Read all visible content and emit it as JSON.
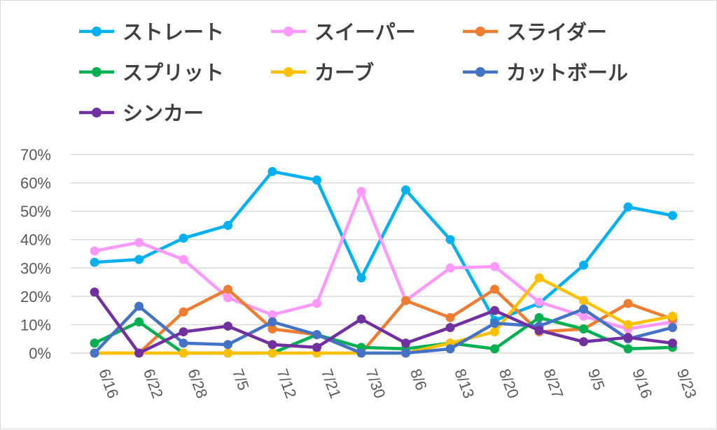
{
  "chart_data": {
    "type": "line",
    "title": "",
    "xlabel": "",
    "ylabel": "",
    "categories": [
      "6/16",
      "6/22",
      "6/28",
      "7/5",
      "7/12",
      "7/21",
      "7/30",
      "8/6",
      "8/13",
      "8/20",
      "8/27",
      "9/5",
      "9/16",
      "9/23"
    ],
    "y_tick_labels": [
      "0%",
      "10%",
      "20%",
      "30%",
      "40%",
      "50%",
      "60%",
      "70%"
    ],
    "ylim": [
      0,
      70
    ],
    "grid": true,
    "legend_position": "top",
    "series": [
      {
        "name": "ストレート",
        "color": "#00b0f0",
        "values": [
          32,
          33,
          40.5,
          45,
          64,
          61,
          26.5,
          57.5,
          40,
          11.5,
          17.5,
          31,
          51.5,
          48.5
        ]
      },
      {
        "name": "スイーパー",
        "color": "#ff99ff",
        "values": [
          36,
          39,
          33,
          19.5,
          13.5,
          17.5,
          57,
          18.5,
          30,
          30.5,
          18,
          13,
          8.5,
          11
        ]
      },
      {
        "name": "スライダー",
        "color": "#ed7d31",
        "values": [
          0,
          0,
          14.5,
          22.5,
          8.5,
          6.5,
          0,
          18.5,
          12.5,
          22.5,
          7.5,
          8.5,
          17.5,
          12
        ]
      },
      {
        "name": "スプリット",
        "color": "#00b050",
        "values": [
          3.5,
          11,
          0,
          0,
          0,
          6.5,
          2,
          1.5,
          3.5,
          1.5,
          12.5,
          8.5,
          1.5,
          2
        ]
      },
      {
        "name": "カーブ",
        "color": "#ffc000",
        "values": [
          0,
          0,
          0,
          0,
          0,
          0,
          0,
          0,
          3.5,
          7.5,
          26.5,
          18.5,
          10,
          13
        ]
      },
      {
        "name": "カットボール",
        "color": "#4472c4",
        "values": [
          0,
          16.5,
          3.5,
          3,
          11,
          6.5,
          0,
          0,
          1.5,
          10.5,
          9.5,
          15.5,
          5,
          9
        ]
      },
      {
        "name": "シンカー",
        "color": "#7030a0",
        "values": [
          21.5,
          0,
          7.5,
          9.5,
          3,
          2,
          12,
          3.5,
          9,
          15,
          8,
          4,
          5.5,
          3.5
        ]
      }
    ]
  }
}
